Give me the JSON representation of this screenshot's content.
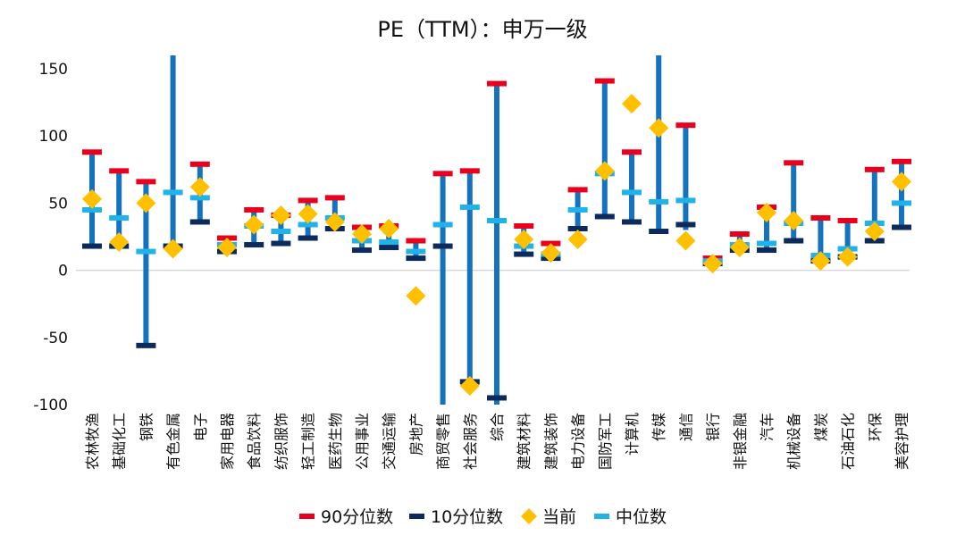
{
  "chart_data": {
    "type": "range-marker",
    "title": "PE（TTM）：申万一级",
    "ylim": [
      -100,
      160
    ],
    "yticks": [
      150,
      100,
      50,
      0,
      -50,
      -100
    ],
    "grid": false,
    "legend_position": "bottom",
    "colors": {
      "range_bar": "#1472BE",
      "p90": "#E8001C",
      "p10": "#0C2A5C",
      "current": "#FFC000",
      "median": "#20B2E8",
      "zero_line": "#D9D9D9"
    },
    "legend": [
      {
        "key": "p90",
        "label": "90分位数"
      },
      {
        "key": "p10",
        "label": "10分位数"
      },
      {
        "key": "current",
        "label": "当前"
      },
      {
        "key": "median",
        "label": "中位数"
      }
    ],
    "categories": [
      "农林牧渔",
      "基础化工",
      "钢铁",
      "有色金属",
      "电子",
      "家用电器",
      "食品饮料",
      "纺织服饰",
      "轻工制造",
      "医药生物",
      "公用事业",
      "交通运输",
      "房地产",
      "商贸零售",
      "社会服务",
      "综合",
      "建筑材料",
      "建筑装饰",
      "电力设备",
      "国防军工",
      "计算机",
      "传媒",
      "通信",
      "银行",
      "非银金融",
      "汽车",
      "机械设备",
      "煤炭",
      "石油石化",
      "环保",
      "美容护理"
    ],
    "range_low": [
      18,
      18,
      -56,
      18,
      36,
      14,
      19,
      20,
      24,
      31,
      15,
      17,
      9,
      -100,
      -83,
      -100,
      12,
      9,
      31,
      40,
      36,
      29,
      30,
      4,
      15,
      15,
      22,
      7,
      10,
      22,
      32
    ],
    "range_high": [
      88,
      74,
      65,
      160,
      78,
      24,
      44,
      42,
      52,
      53,
      32,
      33,
      22,
      72,
      74,
      139,
      33,
      19,
      60,
      140,
      88,
      160,
      108,
      9,
      27,
      47,
      80,
      39,
      37,
      75,
      81
    ],
    "p90": [
      88,
      74,
      66,
      null,
      79,
      24,
      45,
      41,
      52,
      54,
      32,
      33,
      22,
      72,
      74,
      139,
      33,
      20,
      60,
      141,
      88,
      null,
      108,
      9,
      27,
      47,
      80,
      39,
      37,
      75,
      81
    ],
    "p10": [
      18,
      18,
      -56,
      18,
      36,
      14,
      19,
      20,
      24,
      31,
      15,
      17,
      9,
      18,
      -83,
      -95,
      12,
      9,
      31,
      40,
      36,
      29,
      34,
      5,
      15,
      15,
      22,
      7,
      10,
      22,
      32
    ],
    "current": [
      53,
      21,
      50,
      16,
      62,
      17,
      34,
      41,
      42,
      36,
      27,
      31,
      -19,
      null,
      -86,
      null,
      23,
      13,
      23,
      74,
      124,
      106,
      22,
      5,
      17,
      43,
      37,
      7,
      10,
      29,
      66
    ],
    "median": [
      45,
      39,
      14,
      58,
      54,
      19,
      33,
      29,
      34,
      39,
      22,
      21,
      14,
      34,
      47,
      37,
      18,
      12,
      45,
      72,
      58,
      51,
      52,
      7,
      19,
      20,
      35,
      11,
      16,
      35,
      50
    ]
  }
}
